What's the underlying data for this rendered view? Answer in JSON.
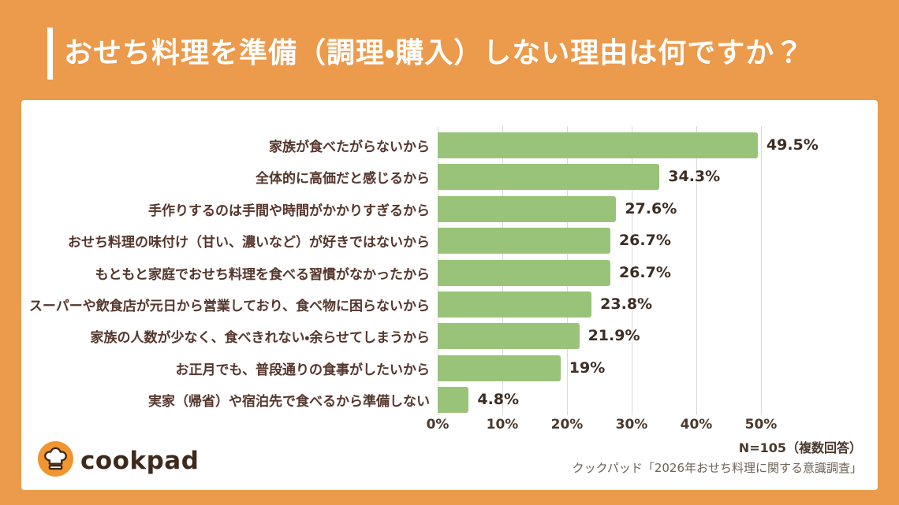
{
  "page": {
    "background_color": "#EC9A4B",
    "title": "おせち料理を準備（調理・購入）しない理由は何ですか？"
  },
  "chart_data": {
    "type": "bar",
    "orientation": "horizontal",
    "title": "おせち料理を準備（調理・購入）しない理由は何ですか？",
    "categories": [
      "家族が食べたがらないから",
      "全体的に高価だと感じるから",
      "手作りするのは手間や時間がかかりすぎるから",
      "おせち料理の味付け（甘い、濃いなど）が好きではないから",
      "もともと家庭でおせち料理を食べる習慣がなかったから",
      "スーパーや飲食店が元日から営業しており、食べ物に困らないから",
      "家族の人数が少なく、食べきれない・余らせてしまうから",
      "お正月でも、普段通りの食事がしたいから",
      "実家（帰省）や宿泊先で食べるから準備しない"
    ],
    "values": [
      49.5,
      34.3,
      27.6,
      26.7,
      26.7,
      23.8,
      21.9,
      19,
      4.8
    ],
    "value_labels": [
      "49.5%",
      "34.3%",
      "27.6%",
      "26.7%",
      "26.7%",
      "23.8%",
      "21.9%",
      "19%",
      "4.8%"
    ],
    "x_ticks": [
      "0%",
      "10%",
      "20%",
      "30%",
      "40%",
      "50%"
    ],
    "x_tick_values": [
      0,
      10,
      20,
      30,
      40,
      50
    ],
    "xlim": [
      0,
      50
    ],
    "grid": true,
    "bar_color": "#98C379",
    "gridline_color": "#D9D9D9"
  },
  "footer": {
    "logo_text": "cookpad",
    "note": "N=105（複数回答）",
    "source": "クックパッド「2026年おせち料理に関する意識調査」"
  }
}
